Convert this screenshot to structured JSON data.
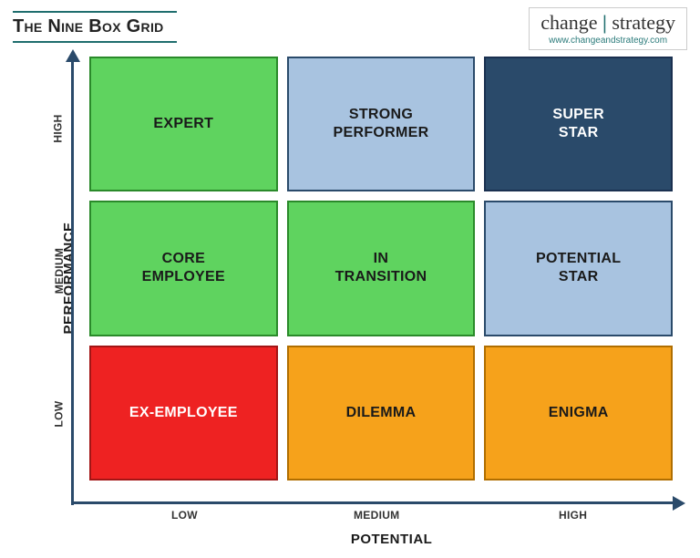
{
  "title": "The Nine Box Grid",
  "brand": {
    "left": "change",
    "divider": "|",
    "right": "strategy",
    "url": "www.changeandstrategy.com"
  },
  "grid": {
    "type": "matrix-grid",
    "rows": 3,
    "cols": 3,
    "y_axis": {
      "label": "PERFORMANCE",
      "ticks": [
        "LOW",
        "MEDIUM",
        "HIGH"
      ]
    },
    "x_axis": {
      "label": "POTENTIAL",
      "ticks": [
        "LOW",
        "MEDIUM",
        "HIGH"
      ]
    },
    "axis_color": "#2a4a6a",
    "background_color": "#ffffff",
    "cell_gap": 10,
    "cell_border_width": 2,
    "label_fontsize": 15,
    "tick_fontsize": 12,
    "cell_fontsize": 16,
    "cells": [
      {
        "row": 0,
        "col": 0,
        "label": "EXPERT",
        "fill": "#5fd35f",
        "border": "#2a8a2a",
        "text": "#1a1a1a"
      },
      {
        "row": 0,
        "col": 1,
        "label": "STRONG PERFORMER",
        "fill": "#a8c3e0",
        "border": "#2a4a6a",
        "text": "#1a1a1a"
      },
      {
        "row": 0,
        "col": 2,
        "label": "SUPER STAR",
        "fill": "#2a4a6a",
        "border": "#1a3050",
        "text": "#ffffff"
      },
      {
        "row": 1,
        "col": 0,
        "label": "CORE EMPLOYEE",
        "fill": "#5fd35f",
        "border": "#2a8a2a",
        "text": "#1a1a1a"
      },
      {
        "row": 1,
        "col": 1,
        "label": "IN TRANSITION",
        "fill": "#5fd35f",
        "border": "#2a8a2a",
        "text": "#1a1a1a"
      },
      {
        "row": 1,
        "col": 2,
        "label": "POTENTIAL STAR",
        "fill": "#a8c3e0",
        "border": "#2a4a6a",
        "text": "#1a1a1a"
      },
      {
        "row": 2,
        "col": 0,
        "label": "EX-EMPLOYEE",
        "fill": "#ee2222",
        "border": "#a31515",
        "text": "#ffffff"
      },
      {
        "row": 2,
        "col": 1,
        "label": "DILEMMA",
        "fill": "#f6a21b",
        "border": "#b06e00",
        "text": "#1a1a1a"
      },
      {
        "row": 2,
        "col": 2,
        "label": "ENIGMA",
        "fill": "#f6a21b",
        "border": "#b06e00",
        "text": "#1a1a1a"
      }
    ]
  }
}
